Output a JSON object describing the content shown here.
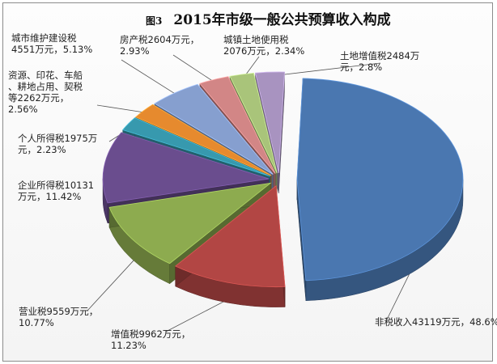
{
  "title": {
    "figure_no": "图3",
    "text": "2015年市级一般公共预算收入构成"
  },
  "chart_data": {
    "type": "pie",
    "title": "2015年市级一般公共预算收入构成",
    "unit": "万元",
    "slices": [
      {
        "name": "非税收入",
        "value": 43119,
        "percent": 48.6,
        "label": "非税收入43119万元，48.6%",
        "color": "#4a77b0"
      },
      {
        "name": "增值税",
        "value": 9962,
        "percent": 11.23,
        "label": "增值税9962万元，\n11.23%",
        "color": "#b24644"
      },
      {
        "name": "营业税",
        "value": 9559,
        "percent": 10.77,
        "label": "营业税9559万元，\n10.77%",
        "color": "#8dab4f"
      },
      {
        "name": "企业所得税",
        "value": 10131,
        "percent": 11.42,
        "label": "企业所得税10131\n万元，11.42%",
        "color": "#6a4d8e"
      },
      {
        "name": "个人所得税",
        "value": 1975,
        "percent": 2.23,
        "label": "个人所得税1975万\n元，2.23%",
        "color": "#3799ae"
      },
      {
        "name": "资源、印花、车船、耕地占用、契税等",
        "value": 2262,
        "percent": 2.56,
        "label": "资源、印花、车船\n、耕地占用、契税\n等2262万元，\n2.56%",
        "color": "#e68a2e"
      },
      {
        "name": "城市维护建设税",
        "value": 4551,
        "percent": 5.13,
        "label": "城市维护建设税\n4551万元，5.13%",
        "color": "#869fcf"
      },
      {
        "name": "房产税",
        "value": 2604,
        "percent": 2.93,
        "label": "房产税2604万元，\n2.93%",
        "color": "#d28686"
      },
      {
        "name": "城镇土地使用税",
        "value": 2076,
        "percent": 2.34,
        "label": "城镇土地使用税\n2076万元，2.34%",
        "color": "#a9c47a"
      },
      {
        "name": "土地增值税",
        "value": 2484,
        "percent": 2.8,
        "label": "土地增值税2484万\n元，2.8%",
        "color": "#a893c0"
      }
    ]
  }
}
